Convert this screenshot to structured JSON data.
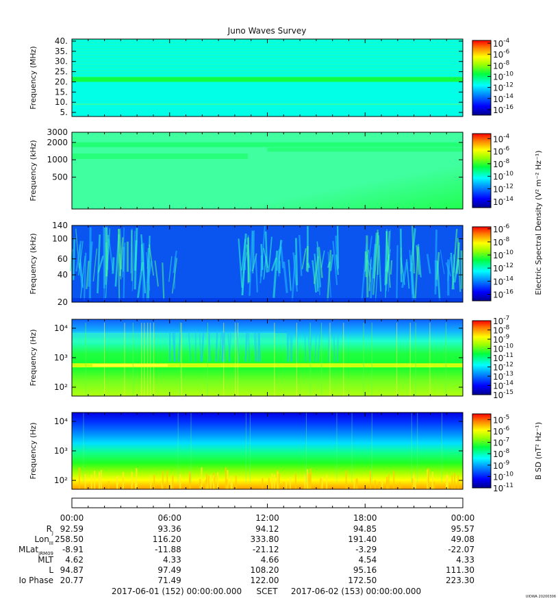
{
  "title": "Juno Waves Survey",
  "chart_data": {
    "type": "heatmap",
    "title": "Juno Waves Survey",
    "panels": [
      {
        "id": "panel1",
        "ylabel": "Frequency (MHz)",
        "yscale": "linear",
        "ylim": [
          3,
          41
        ],
        "yticks": [
          5,
          10,
          15,
          20,
          25,
          30,
          35,
          40
        ],
        "yticklabels": [
          "5.",
          "10.",
          "15.",
          "20.",
          "25.",
          "30.",
          "35.",
          "40."
        ],
        "colorbar": {
          "exponents": [
            -4,
            -6,
            -8,
            -10,
            -12,
            -14,
            -16
          ],
          "range_exp": [
            -17,
            -3.5
          ]
        }
      },
      {
        "id": "panel2",
        "ylabel": "Frequency (kHz)",
        "yscale": "log",
        "ylim": [
          140,
          3000
        ],
        "yticks": [
          500,
          1000,
          2000,
          3000
        ],
        "yticklabels": [
          "500",
          "1000",
          "2000",
          "3000"
        ],
        "colorbar": {
          "exponents": [
            -4,
            -6,
            -8,
            -10,
            -12,
            -14
          ],
          "range_exp": [
            -15,
            -3.2
          ]
        }
      },
      {
        "id": "panel3",
        "ylabel": "Frequency (kHz)",
        "yscale": "log",
        "ylim": [
          20,
          140
        ],
        "yticks": [
          20,
          40,
          60,
          100,
          140
        ],
        "yticklabels": [
          "20",
          "40",
          "60",
          "100",
          "140"
        ],
        "colorbar": {
          "exponents": [
            -6,
            -8,
            -10,
            -12,
            -14,
            -16
          ],
          "range_exp": [
            -17,
            -5.7
          ]
        }
      },
      {
        "id": "panel4",
        "ylabel": "Frequency (Hz)",
        "yscale": "log",
        "ylim": [
          50,
          20000
        ],
        "yticks": [
          100,
          1000,
          10000
        ],
        "yticklabels": [
          "10²",
          "10³",
          "10⁴"
        ],
        "colorbar": {
          "exponents": [
            -7,
            -8,
            -9,
            -10,
            -11,
            -12,
            -13,
            -14,
            -15
          ],
          "range_exp": [
            -15,
            -7
          ]
        }
      },
      {
        "id": "panel5",
        "ylabel": "Frequency (Hz)",
        "yscale": "log",
        "ylim": [
          50,
          20000
        ],
        "yticks": [
          100,
          1000,
          10000
        ],
        "yticklabels": [
          "10²",
          "10³",
          "10⁴"
        ],
        "colorbar": {
          "exponents": [
            -5,
            -6,
            -7,
            -8,
            -9,
            -10,
            -11
          ],
          "range_exp": [
            -11,
            -4.5
          ]
        }
      }
    ],
    "colorbar_label_electric": "Electric Spectral Density (V² m⁻² Hz⁻¹)",
    "colorbar_label_magnetic": "B SD (nT² Hz⁻¹)",
    "x_time_labels": [
      "00:00",
      "06:00",
      "12:00",
      "18:00",
      "00:00"
    ],
    "ephemeris": [
      {
        "label": "R",
        "sub": "J",
        "values": [
          "92.59",
          "93.36",
          "94.12",
          "94.85",
          "95.57"
        ]
      },
      {
        "label": "Lon",
        "sub": "III",
        "values": [
          "258.50",
          "116.20",
          "333.80",
          "191.40",
          "49.08"
        ]
      },
      {
        "label": "MLat",
        "sub": "JRM09",
        "values": [
          "-8.91",
          "-11.88",
          "-21.12",
          "-3.29",
          "-22.07"
        ]
      },
      {
        "label": "MLT",
        "sub": "",
        "values": [
          "4.62",
          "4.33",
          "4.66",
          "4.54",
          "4.33"
        ]
      },
      {
        "label": "L",
        "sub": "",
        "values": [
          "94.87",
          "97.49",
          "108.20",
          "95.16",
          "111.30"
        ]
      },
      {
        "label": "Io Phase",
        "sub": "",
        "values": [
          "20.77",
          "71.49",
          "122.00",
          "172.50",
          "223.30"
        ]
      }
    ],
    "time_range_start": "2017-06-01 (152) 00:00:00.000",
    "time_axis_label": "SCET",
    "time_range_end": "2017-06-02 (153) 00:00:00.000",
    "footer_tag": "UIOWA 20200306"
  }
}
